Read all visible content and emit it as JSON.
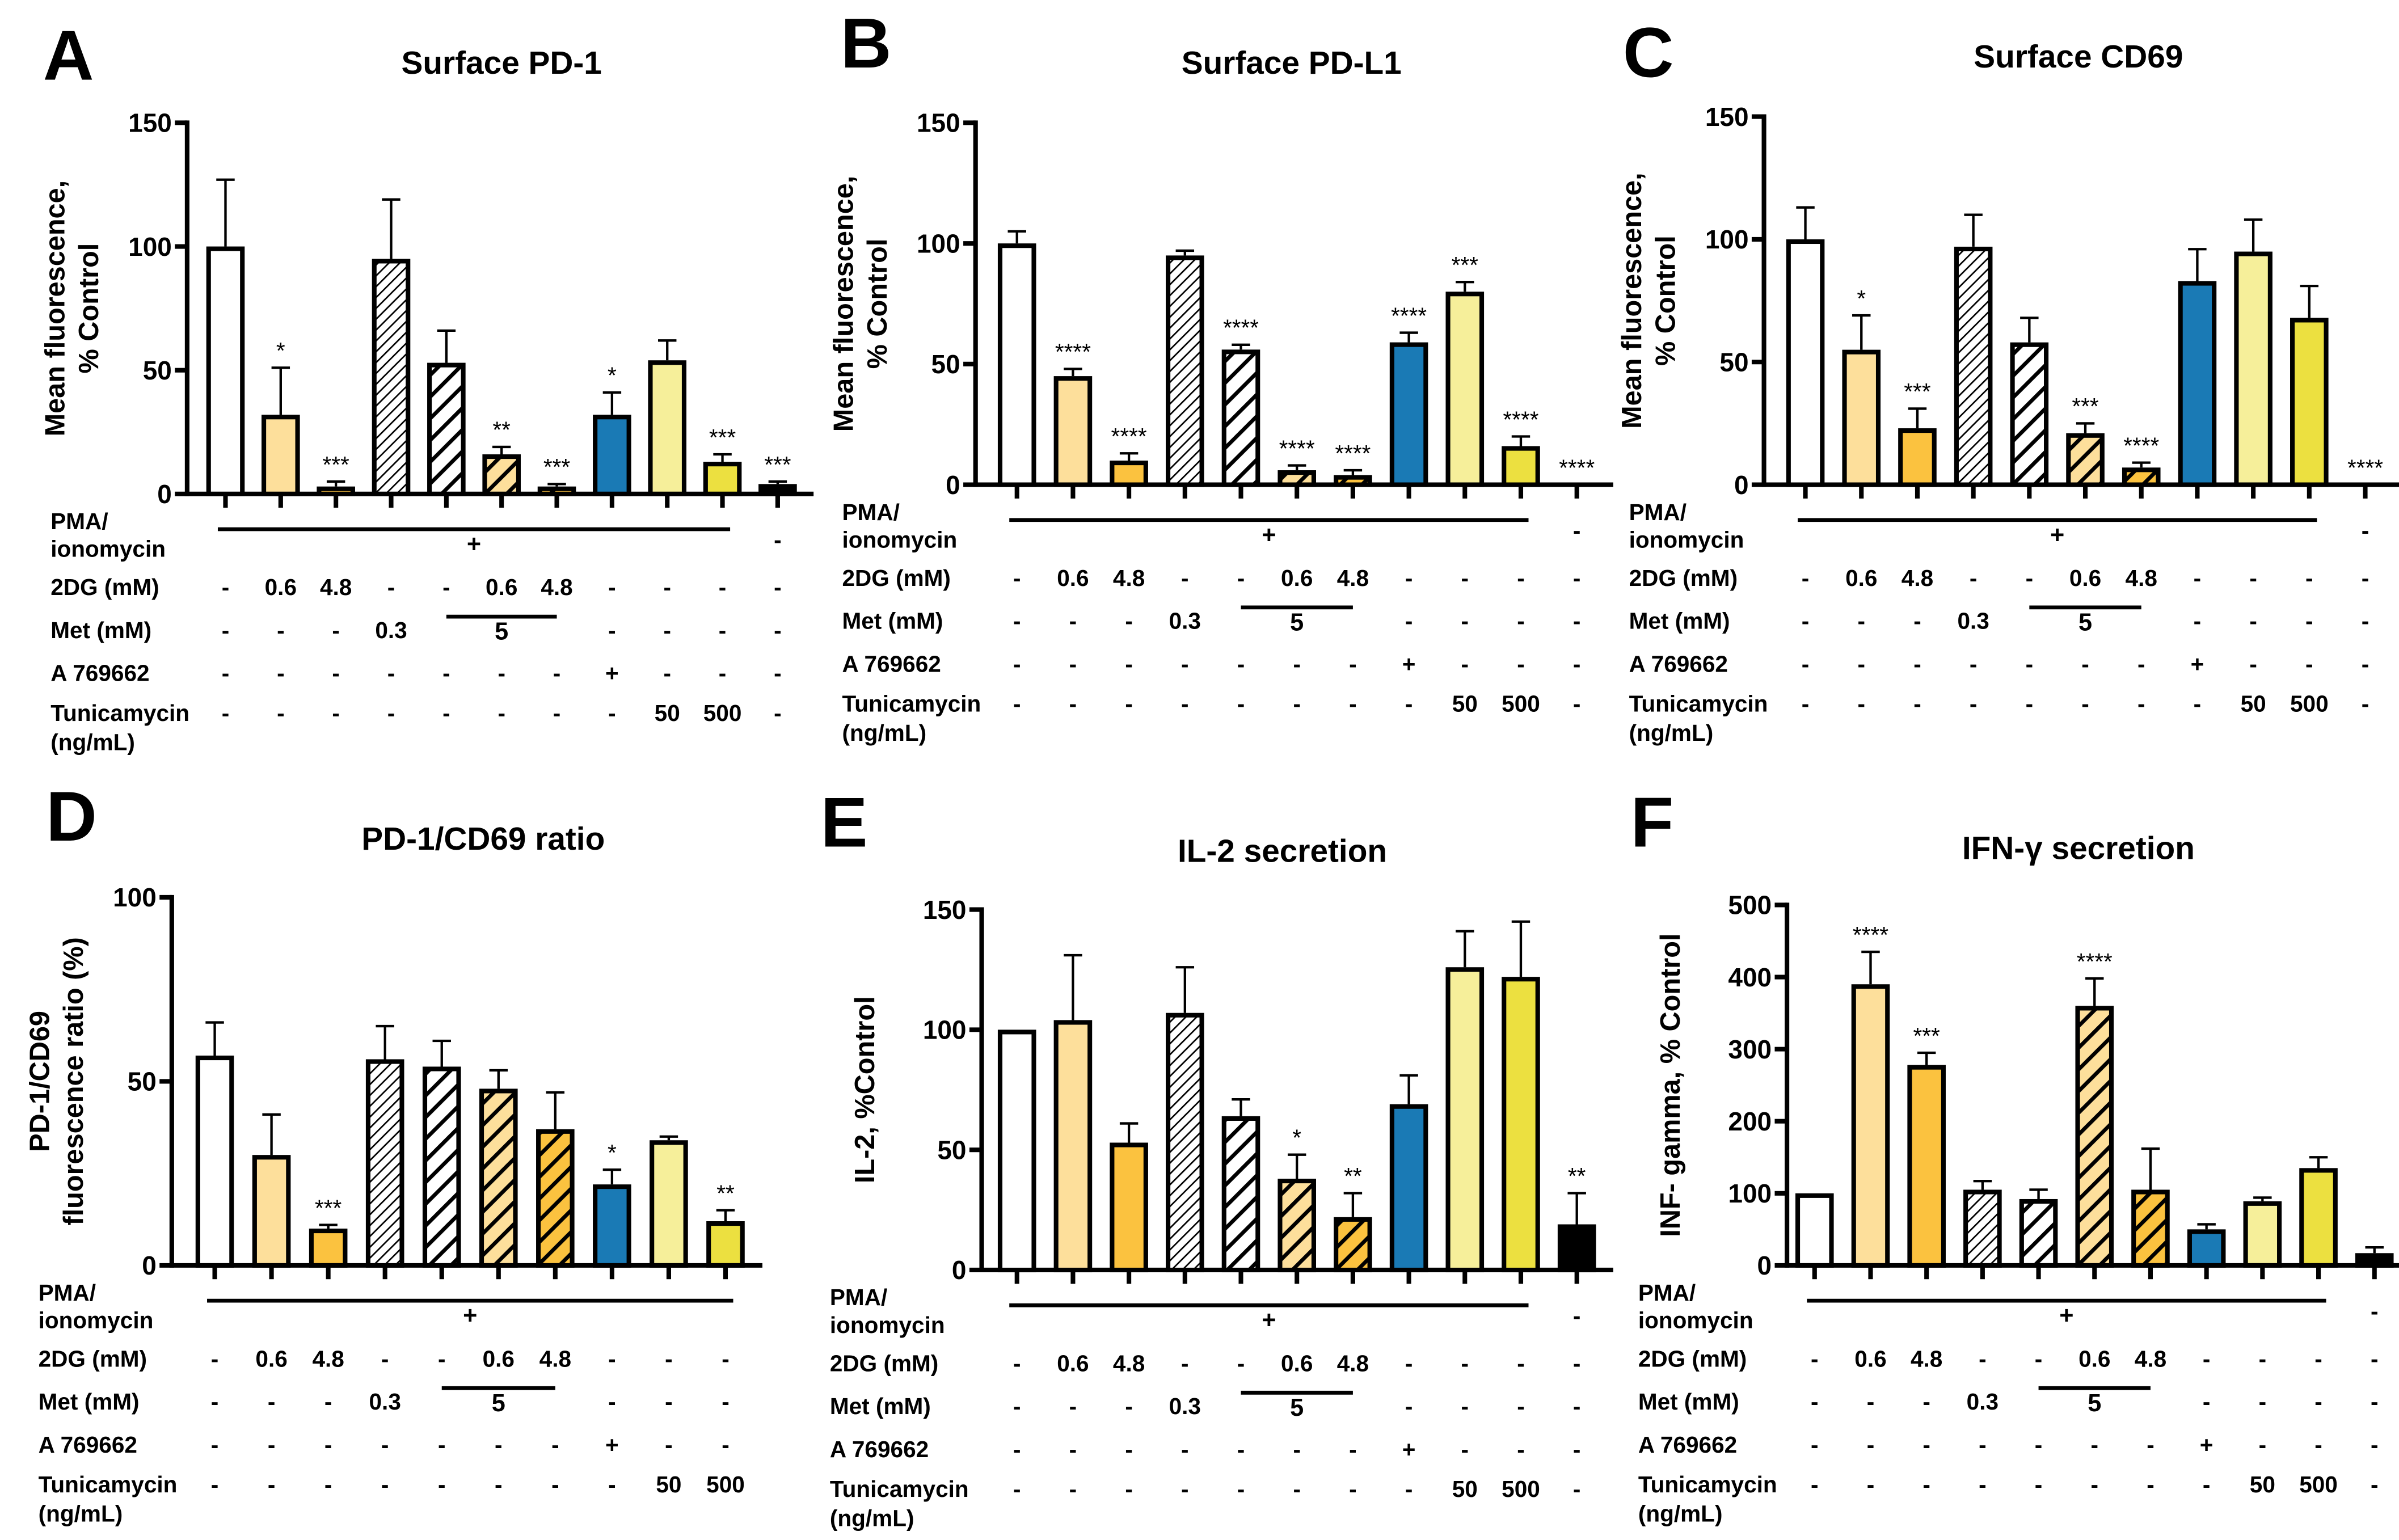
{
  "colors": {
    "white": "#ffffff",
    "light_orange": "#FDDF9B",
    "orange": "#FBC23F",
    "blue": "#1A7AB5",
    "light_yellow": "#F6EF9A",
    "yellow": "#ECE040",
    "black": "#000000"
  },
  "bar_styles": [
    "white",
    "light_orange",
    "orange",
    "hatch_fine_white",
    "hatch_white",
    "hatch_light_orange",
    "hatch_orange",
    "blue",
    "light_yellow",
    "yellow",
    "black"
  ],
  "condition_table": {
    "rows": [
      {
        "label": [
          "PMA/",
          "ionomycin"
        ],
        "span": {
          "label": "+",
          "from": 0,
          "to": 9
        },
        "values": [
          null,
          null,
          null,
          null,
          null,
          null,
          null,
          null,
          null,
          null,
          "-"
        ]
      },
      {
        "label": [
          "2DG (mM)"
        ],
        "values": [
          "-",
          "0.6",
          "4.8",
          "-",
          "-",
          "0.6",
          "4.8",
          "-",
          "-",
          "-",
          "-"
        ]
      },
      {
        "label": [
          "Met (mM)"
        ],
        "span": {
          "label": "5",
          "from": 4,
          "to": 6
        },
        "values": [
          "-",
          "-",
          "-",
          "0.3",
          null,
          null,
          null,
          "-",
          "-",
          "-",
          "-"
        ]
      },
      {
        "label": [
          "A 769662"
        ],
        "values": [
          "-",
          "-",
          "-",
          "-",
          "-",
          "-",
          "-",
          "+",
          "-",
          "-",
          "-"
        ]
      },
      {
        "label": [
          "Tunicamycin",
          "(ng/mL)"
        ],
        "values": [
          "-",
          "-",
          "-",
          "-",
          "-",
          "-",
          "-",
          "-",
          "50",
          "500",
          "-"
        ]
      }
    ]
  },
  "chart_data": [
    {
      "panel": "A",
      "type": "bar",
      "title": "Surface PD-1",
      "ylabel": [
        "Mean fluorescence,",
        "% Control"
      ],
      "ylim": [
        0,
        150
      ],
      "yticks": [
        "0",
        "50",
        "100",
        "150"
      ],
      "values": [
        100,
        32,
        3,
        95,
        53,
        16,
        3,
        32,
        54,
        13,
        4
      ],
      "errors": [
        27,
        19,
        2,
        24,
        13,
        3,
        1,
        9,
        8,
        3,
        1
      ],
      "significance": [
        "",
        "*",
        "***",
        "",
        "",
        "**",
        "***",
        "*",
        "",
        "***",
        "***"
      ]
    },
    {
      "panel": "B",
      "type": "bar",
      "title": "Surface PD-L1",
      "ylabel": [
        "Mean fluorescence,",
        "% Control"
      ],
      "ylim": [
        0,
        150
      ],
      "yticks": [
        "0",
        "50",
        "100",
        "150"
      ],
      "values": [
        100,
        45,
        10,
        95,
        56,
        6,
        4,
        59,
        80,
        16,
        0
      ],
      "errors": [
        5,
        3,
        3,
        2,
        2,
        2,
        2,
        4,
        4,
        4,
        0
      ],
      "significance": [
        "",
        "****",
        "****",
        "",
        "****",
        "****",
        "****",
        "****",
        "***",
        "****",
        "****"
      ]
    },
    {
      "panel": "C",
      "type": "bar",
      "title": "Surface CD69",
      "ylabel": [
        "Mean fluorescence,",
        "% Control"
      ],
      "ylim": [
        0,
        150
      ],
      "yticks": [
        "0",
        "50",
        "100",
        "150"
      ],
      "values": [
        100,
        55,
        23,
        97,
        58,
        21,
        7,
        83,
        95,
        68,
        0
      ],
      "errors": [
        13,
        14,
        8,
        13,
        10,
        4,
        2,
        13,
        13,
        13,
        0
      ],
      "significance": [
        "",
        "*",
        "***",
        "",
        "",
        "***",
        "****",
        "",
        "",
        "",
        "****"
      ]
    },
    {
      "panel": "D",
      "type": "bar",
      "title": "PD-1/CD69 ratio",
      "ylabel": [
        "PD-1/CD69",
        "fluorescence ratio (%)"
      ],
      "ylim": [
        0,
        100
      ],
      "yticks": [
        "0",
        "50",
        "100"
      ],
      "values": [
        57,
        30,
        10,
        56,
        54,
        48,
        37,
        22,
        34,
        12
      ],
      "errors": [
        9,
        11,
        1,
        9,
        7,
        5,
        10,
        4,
        1,
        3
      ],
      "significance": [
        "",
        "",
        "***",
        "",
        "",
        "",
        "",
        "*",
        "",
        "**"
      ]
    },
    {
      "panel": "E",
      "type": "bar",
      "title": "IL-2 secretion",
      "ylabel": [
        "IL-2, %Control"
      ],
      "ylim": [
        0,
        150
      ],
      "yticks": [
        "0",
        "50",
        "100",
        "150"
      ],
      "values": [
        100,
        104,
        53,
        107,
        64,
        38,
        22,
        69,
        126,
        122,
        19
      ],
      "errors": [
        0,
        27,
        8,
        19,
        7,
        10,
        10,
        12,
        15,
        23,
        13
      ],
      "significance": [
        "",
        "",
        "",
        "",
        "",
        "*",
        "**",
        "",
        "",
        "",
        "**"
      ]
    },
    {
      "panel": "F",
      "type": "bar",
      "title": "IFN-γ secretion",
      "ylabel": [
        "INF- gamma, % Control"
      ],
      "ylim": [
        0,
        500
      ],
      "yticks": [
        "0",
        "100",
        "200",
        "300",
        "400",
        "500"
      ],
      "values": [
        100,
        390,
        278,
        105,
        92,
        360,
        105,
        50,
        89,
        135,
        17
      ],
      "errors": [
        0,
        45,
        17,
        12,
        13,
        38,
        57,
        7,
        5,
        15,
        8
      ],
      "significance": [
        "",
        "****",
        "***",
        "",
        "",
        "****",
        "",
        "",
        "",
        "",
        ""
      ]
    }
  ]
}
